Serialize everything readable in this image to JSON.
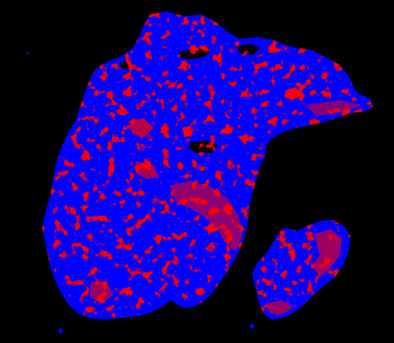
{
  "map": {
    "background_color": "#000000",
    "land_color": "#0000ff",
    "highlight_color": "#ff0000",
    "legend": [],
    "title": ""
  }
}
